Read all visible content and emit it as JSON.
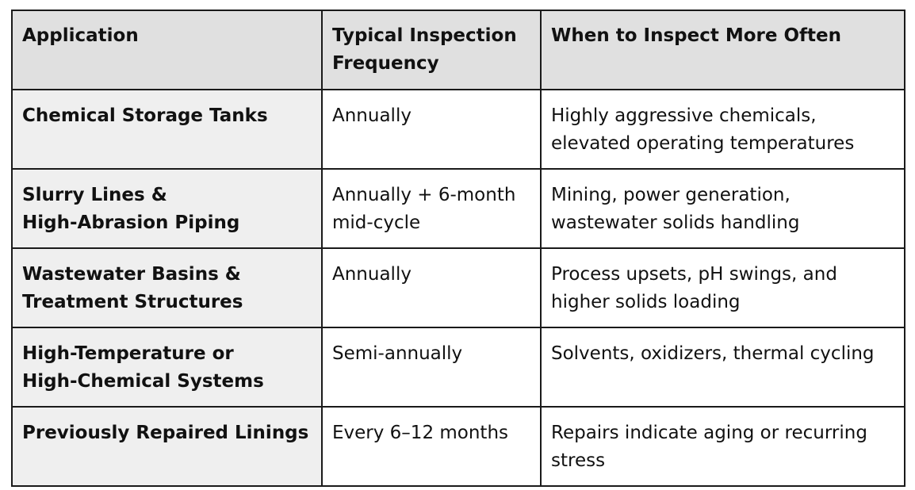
{
  "table": {
    "headers": [
      [
        "Application"
      ],
      [
        "Typical Inspection",
        "Frequency"
      ],
      [
        "When to Inspect More Often"
      ]
    ],
    "rows": [
      {
        "application": [
          "Chemical Storage Tanks"
        ],
        "frequency": [
          "Annually"
        ],
        "when": [
          "Highly aggressive chemicals,",
          "elevated operating temperatures"
        ]
      },
      {
        "application": [
          "Slurry Lines &",
          "High-Abrasion Piping"
        ],
        "frequency": [
          "Annually + 6-month",
          "mid-cycle"
        ],
        "when": [
          "Mining, power generation,",
          "wastewater solids handling"
        ]
      },
      {
        "application": [
          "Wastewater Basins &",
          "Treatment Structures"
        ],
        "frequency": [
          "Annually"
        ],
        "when": [
          "Process upsets, pH swings, and",
          "higher solids loading"
        ]
      },
      {
        "application": [
          "High-Temperature or",
          "High-Chemical Systems"
        ],
        "frequency": [
          "Semi-annually"
        ],
        "when": [
          "Solvents, oxidizers, thermal cycling"
        ]
      },
      {
        "application": [
          "Previously Repaired Linings"
        ],
        "frequency": [
          "Every 6–12 months"
        ],
        "when": [
          "Repairs indicate aging or recurring",
          "stress"
        ]
      }
    ]
  }
}
